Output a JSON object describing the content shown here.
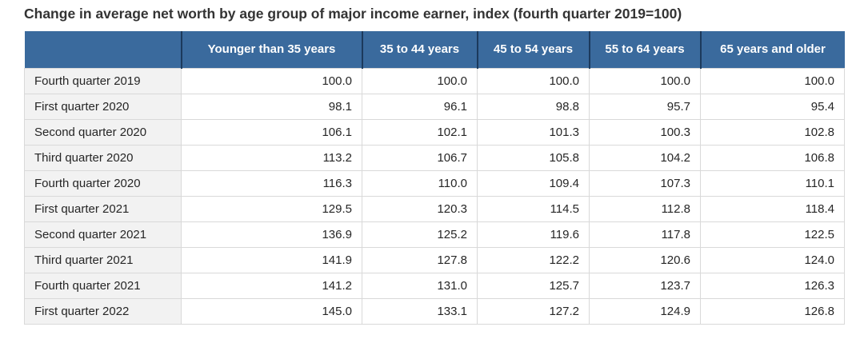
{
  "title": "Change in average net worth by age group of major income earner, index (fourth quarter 2019=100)",
  "colors": {
    "header_bg": "#3a6a9d",
    "header_divider": "#1c3a5c",
    "header_text": "#ffffff",
    "label_bg": "#f2f2f2",
    "grid_border": "#d9d9d9",
    "title_color": "#333333",
    "body_text": "#262626"
  },
  "table": {
    "corner_label": "",
    "columns": [
      "Younger than 35 years",
      "35 to 44 years",
      "45 to 54 years",
      "55 to 64 years",
      "65 years and older"
    ],
    "rows": [
      {
        "label": "Fourth quarter 2019",
        "values": [
          "100.0",
          "100.0",
          "100.0",
          "100.0",
          "100.0"
        ]
      },
      {
        "label": "First quarter 2020",
        "values": [
          "98.1",
          "96.1",
          "98.8",
          "95.7",
          "95.4"
        ]
      },
      {
        "label": "Second quarter 2020",
        "values": [
          "106.1",
          "102.1",
          "101.3",
          "100.3",
          "102.8"
        ]
      },
      {
        "label": "Third quarter 2020",
        "values": [
          "113.2",
          "106.7",
          "105.8",
          "104.2",
          "106.8"
        ]
      },
      {
        "label": "Fourth quarter 2020",
        "values": [
          "116.3",
          "110.0",
          "109.4",
          "107.3",
          "110.1"
        ]
      },
      {
        "label": "First quarter 2021",
        "values": [
          "129.5",
          "120.3",
          "114.5",
          "112.8",
          "118.4"
        ]
      },
      {
        "label": "Second quarter 2021",
        "values": [
          "136.9",
          "125.2",
          "119.6",
          "117.8",
          "122.5"
        ]
      },
      {
        "label": "Third quarter 2021",
        "values": [
          "141.9",
          "127.8",
          "122.2",
          "120.6",
          "124.0"
        ]
      },
      {
        "label": "Fourth quarter 2021",
        "values": [
          "141.2",
          "131.0",
          "125.7",
          "123.7",
          "126.3"
        ]
      },
      {
        "label": "First quarter 2022",
        "values": [
          "145.0",
          "133.1",
          "127.2",
          "124.9",
          "126.8"
        ]
      }
    ]
  },
  "chart_data": {
    "type": "table",
    "title": "Change in average net worth by age group of major income earner, index (fourth quarter 2019=100)",
    "categories": [
      "Fourth quarter 2019",
      "First quarter 2020",
      "Second quarter 2020",
      "Third quarter 2020",
      "Fourth quarter 2020",
      "First quarter 2021",
      "Second quarter 2021",
      "Third quarter 2021",
      "Fourth quarter 2021",
      "First quarter 2022"
    ],
    "series": [
      {
        "name": "Younger than 35 years",
        "values": [
          100.0,
          98.1,
          106.1,
          113.2,
          116.3,
          129.5,
          136.9,
          141.9,
          141.2,
          145.0
        ]
      },
      {
        "name": "35 to 44 years",
        "values": [
          100.0,
          96.1,
          102.1,
          106.7,
          110.0,
          120.3,
          125.2,
          127.8,
          131.0,
          133.1
        ]
      },
      {
        "name": "45 to 54 years",
        "values": [
          100.0,
          98.8,
          101.3,
          105.8,
          109.4,
          114.5,
          119.6,
          122.2,
          125.7,
          127.2
        ]
      },
      {
        "name": "55 to 64 years",
        "values": [
          100.0,
          95.7,
          100.3,
          104.2,
          107.3,
          112.8,
          117.8,
          120.6,
          123.7,
          124.9
        ]
      },
      {
        "name": "65 years and older",
        "values": [
          100.0,
          95.4,
          102.8,
          106.8,
          110.1,
          118.4,
          122.5,
          124.0,
          126.3,
          126.8
        ]
      }
    ],
    "index_base": "fourth quarter 2019 = 100"
  }
}
